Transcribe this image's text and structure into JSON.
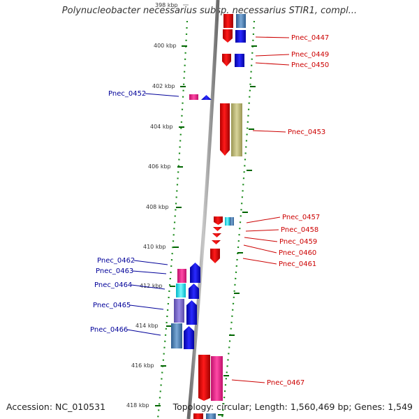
{
  "title": "Polynucleobacter necessarius subsp. necessarius STIR1, compl...",
  "footer": {
    "accession": "Accession: NC_010531",
    "topology": "Topology: circular; Length: 1,560,469 bp; Genes: 1,549"
  },
  "ruler": {
    "unit": "kbp",
    "ticks": [
      {
        "label": "398 kbp",
        "kbp": 398
      },
      {
        "label": "400 kbp",
        "kbp": 400
      },
      {
        "label": "402 kbp",
        "kbp": 402
      },
      {
        "label": "404 kbp",
        "kbp": 404
      },
      {
        "label": "406 kbp",
        "kbp": 406
      },
      {
        "label": "408 kbp",
        "kbp": 408
      },
      {
        "label": "410 kbp",
        "kbp": 410
      },
      {
        "label": "412 kbp",
        "kbp": 412
      },
      {
        "label": "414 kbp",
        "kbp": 414
      },
      {
        "label": "416 kbp",
        "kbp": 416
      },
      {
        "label": "418 kbp",
        "kbp": 418
      }
    ]
  },
  "colors": {
    "forward_label": "#cc0000",
    "reverse_label": "#000099",
    "backbone": "#888888",
    "tick": "#006600"
  },
  "genes": {
    "forward_labels": [
      "Pnec_0447",
      "Pnec_0449",
      "Pnec_0450",
      "Pnec_0453",
      "Pnec_0457",
      "Pnec_0458",
      "Pnec_0459",
      "Pnec_0460",
      "Pnec_0461",
      "Pnec_0467"
    ],
    "reverse_labels": [
      "Pnec_0452",
      "Pnec_0462",
      "Pnec_0463",
      "Pnec_0464",
      "Pnec_0465",
      "Pnec_0466"
    ]
  }
}
